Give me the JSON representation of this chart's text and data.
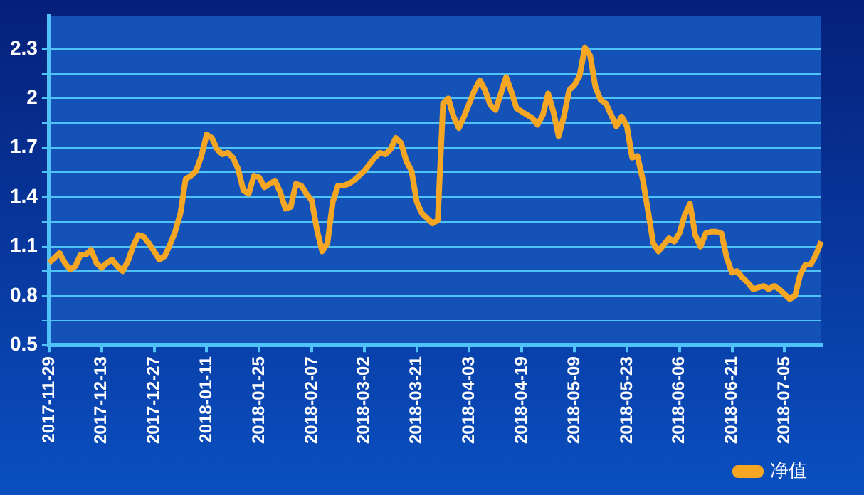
{
  "chart_data": {
    "type": "line",
    "categories": [
      "2017-11-29",
      null,
      null,
      null,
      null,
      null,
      null,
      null,
      null,
      null,
      "2017-12-13",
      null,
      null,
      null,
      null,
      null,
      null,
      null,
      null,
      null,
      "2017-12-27",
      null,
      null,
      null,
      null,
      null,
      null,
      null,
      null,
      null,
      "2018-01-11",
      null,
      null,
      null,
      null,
      null,
      null,
      null,
      null,
      null,
      "2018-01-25",
      null,
      null,
      null,
      null,
      null,
      null,
      null,
      null,
      null,
      "2018-02-07",
      null,
      null,
      null,
      null,
      null,
      null,
      null,
      null,
      null,
      "2018-03-02",
      null,
      null,
      null,
      null,
      null,
      null,
      null,
      null,
      null,
      "2018-03-21",
      null,
      null,
      null,
      null,
      null,
      null,
      null,
      null,
      null,
      "2018-04-03",
      null,
      null,
      null,
      null,
      null,
      null,
      null,
      null,
      null,
      "2018-04-19",
      null,
      null,
      null,
      null,
      null,
      null,
      null,
      null,
      null,
      "2018-05-09",
      null,
      null,
      null,
      null,
      null,
      null,
      null,
      null,
      null,
      "2018-05-23",
      null,
      null,
      null,
      null,
      null,
      null,
      null,
      null,
      null,
      "2018-06-06",
      null,
      null,
      null,
      null,
      null,
      null,
      null,
      null,
      null,
      "2018-06-21",
      null,
      null,
      null,
      null,
      null,
      null,
      null,
      null,
      null,
      "2018-07-05",
      null,
      null,
      null,
      null,
      null,
      null,
      null
    ],
    "series": [
      {
        "name": "净值",
        "color": "#f5a623",
        "values": [
          1.0,
          1.03,
          1.06,
          1.0,
          0.96,
          0.98,
          1.05,
          1.05,
          1.08,
          1.0,
          0.97,
          1.0,
          1.02,
          0.98,
          0.95,
          1.01,
          1.1,
          1.17,
          1.16,
          1.12,
          1.07,
          1.02,
          1.04,
          1.11,
          1.19,
          1.3,
          1.51,
          1.53,
          1.56,
          1.65,
          1.78,
          1.76,
          1.69,
          1.66,
          1.67,
          1.64,
          1.57,
          1.44,
          1.42,
          1.53,
          1.52,
          1.46,
          1.48,
          1.5,
          1.43,
          1.33,
          1.34,
          1.48,
          1.47,
          1.42,
          1.38,
          1.2,
          1.07,
          1.12,
          1.37,
          1.47,
          1.47,
          1.48,
          1.5,
          1.53,
          1.56,
          1.6,
          1.64,
          1.67,
          1.66,
          1.69,
          1.76,
          1.73,
          1.62,
          1.56,
          1.37,
          1.3,
          1.27,
          1.24,
          1.26,
          1.97,
          2.0,
          1.89,
          1.82,
          1.89,
          1.97,
          2.05,
          2.11,
          2.05,
          1.96,
          1.93,
          2.03,
          2.13,
          2.04,
          1.94,
          1.92,
          1.9,
          1.88,
          1.84,
          1.9,
          2.03,
          1.92,
          1.77,
          1.89,
          2.05,
          2.08,
          2.14,
          2.31,
          2.26,
          2.07,
          1.99,
          1.97,
          1.9,
          1.83,
          1.89,
          1.83,
          1.64,
          1.65,
          1.51,
          1.32,
          1.12,
          1.07,
          1.11,
          1.15,
          1.13,
          1.18,
          1.29,
          1.36,
          1.17,
          1.1,
          1.18,
          1.19,
          1.19,
          1.18,
          1.03,
          0.94,
          0.95,
          0.91,
          0.88,
          0.84,
          0.85,
          0.86,
          0.84,
          0.86,
          0.84,
          0.81,
          0.78,
          0.8,
          0.93,
          0.99,
          0.99,
          1.05,
          1.13
        ]
      }
    ],
    "ylim": [
      0.5,
      2.5
    ],
    "yticks": [
      0.5,
      {
        "value": 0.65,
        "label": null
      },
      0.8,
      {
        "value": 0.95,
        "label": null
      },
      1.1,
      {
        "value": 1.25,
        "label": null
      },
      1.4,
      {
        "value": 1.55,
        "label": null
      },
      1.7,
      {
        "value": 1.85,
        "label": null
      },
      2,
      {
        "value": 2.15,
        "label": null
      },
      2.3
    ],
    "grid": "y",
    "legend": "bottom right"
  }
}
